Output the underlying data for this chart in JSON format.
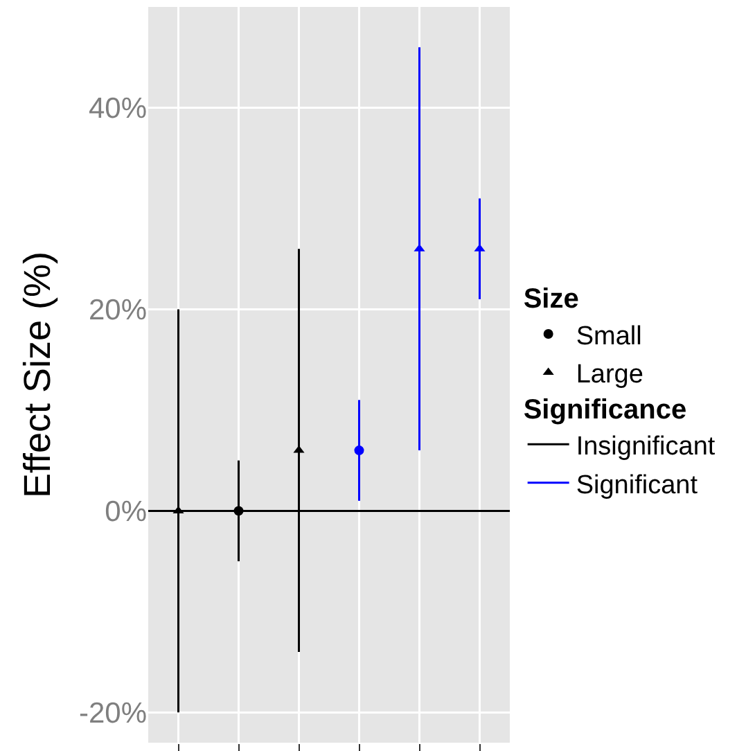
{
  "chart_data": {
    "type": "scatter",
    "ylabel": "Effect Size (%)",
    "categories": [
      null,
      null,
      null,
      null,
      null,
      null
    ],
    "series": [
      {
        "name": "Small",
        "marker": "circle",
        "color": "#000000",
        "colors": [
          null,
          "#000000",
          null,
          "#0000ff",
          null,
          null
        ],
        "values": [
          null,
          0,
          null,
          6,
          null,
          null
        ],
        "errors": [
          null,
          5,
          null,
          5,
          null,
          null
        ]
      },
      {
        "name": "Large",
        "marker": "triangle",
        "color": "#000000",
        "colors": [
          "#000000",
          null,
          "#000000",
          null,
          "#0000ff",
          "#0000ff"
        ],
        "values": [
          0,
          null,
          6,
          null,
          26,
          26
        ],
        "errors": [
          20,
          null,
          20,
          null,
          20,
          5
        ]
      },
      {
        "name": "Insignificant",
        "color": "#000000",
        "values": [
          null,
          null,
          null,
          null,
          null,
          null
        ]
      },
      {
        "name": "Significant",
        "color": "#0000ff",
        "values": [
          null,
          null,
          null,
          null,
          null,
          null
        ]
      }
    ],
    "legend_title": [
      "Size",
      "Significance"
    ],
    "ylim": [
      -23,
      50
    ],
    "yticks": [
      {
        "value": -20,
        "label": "-20%"
      },
      {
        "value": 0,
        "label": "0%"
      },
      {
        "value": 20,
        "label": "20%"
      },
      {
        "value": 40,
        "label": "40%"
      }
    ],
    "ref_lines": [
      {
        "axis": "y",
        "value": 0,
        "color": "#000000"
      }
    ],
    "grid": true,
    "legend": "right",
    "tick_labels": "y"
  }
}
